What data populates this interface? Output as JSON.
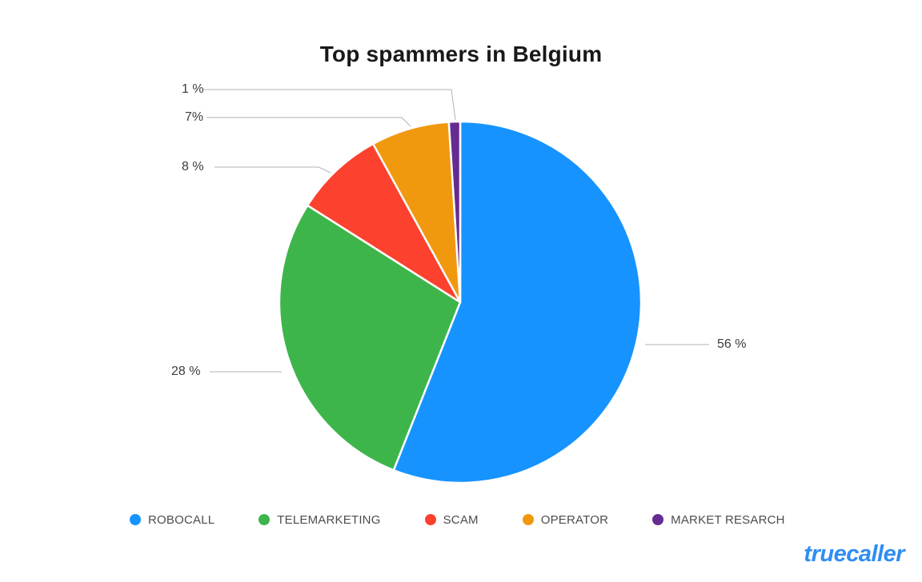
{
  "chart_data": {
    "type": "pie",
    "title": "Top spammers in Belgium",
    "unit": "%",
    "direction": "clockwise",
    "start_angle_deg": 0,
    "legend_position": "bottom",
    "slices": [
      {
        "label": "ROBOCALL",
        "value": 56,
        "pct_label": "56 %",
        "color": "#1793ff"
      },
      {
        "label": "TELEMARKETING",
        "value": 28,
        "pct_label": "28 %",
        "color": "#3db54b"
      },
      {
        "label": "SCAM",
        "value": 8,
        "pct_label": "8 %",
        "color": "#fc412e"
      },
      {
        "label": "OPERATOR",
        "value": 7,
        "pct_label": "7%",
        "color": "#f0990f"
      },
      {
        "label": "MARKET RESARCH",
        "value": 1,
        "pct_label": "1 %",
        "color": "#662c91"
      }
    ]
  },
  "branding": {
    "logo_text": "truecaller",
    "logo_color": "#2f8df4"
  }
}
